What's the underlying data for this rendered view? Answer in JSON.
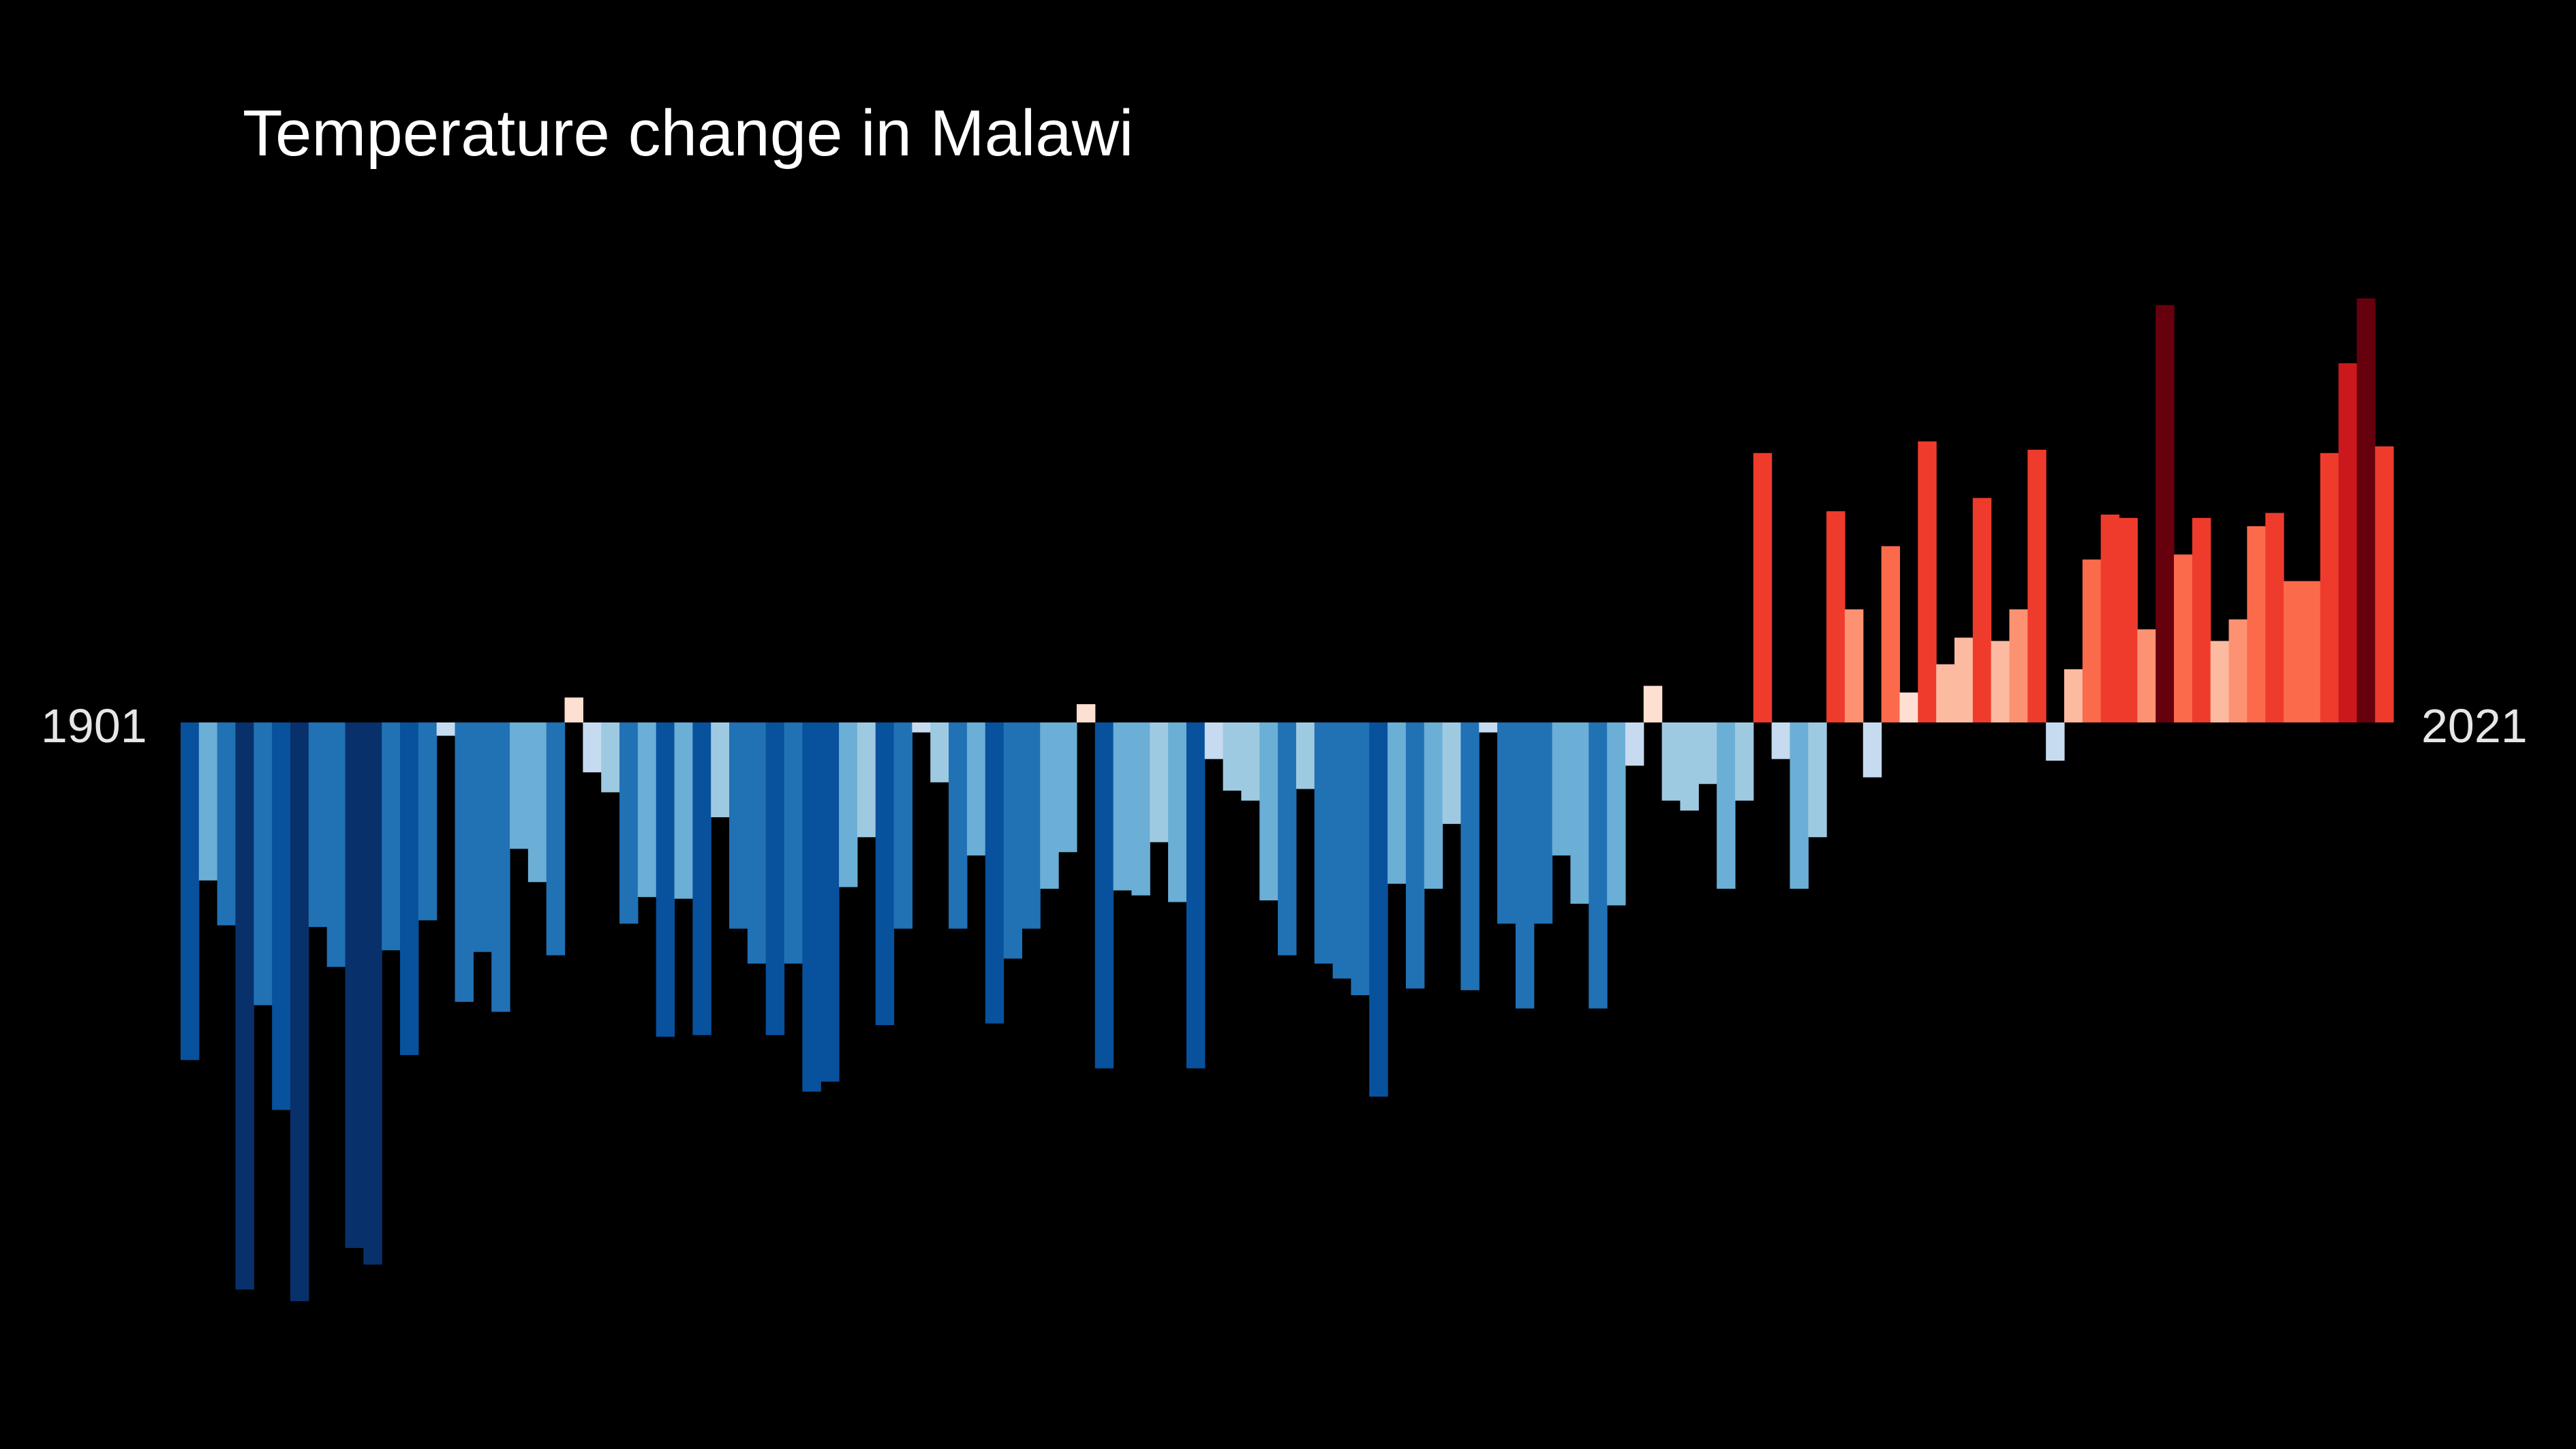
{
  "chart_data": {
    "type": "bar",
    "title": "Temperature change in Malawi",
    "xlabel": "",
    "ylabel": "",
    "x_start_label": "1901",
    "x_end_label": "2021",
    "ylim": [
      -3.5,
      2.6
    ],
    "background_color": "#000000",
    "color_scale": "blue-to-red diverging",
    "categories": [
      1901,
      1902,
      1903,
      1904,
      1905,
      1906,
      1907,
      1908,
      1909,
      1910,
      1911,
      1912,
      1913,
      1914,
      1915,
      1916,
      1917,
      1918,
      1919,
      1920,
      1921,
      1922,
      1923,
      1924,
      1925,
      1926,
      1927,
      1928,
      1929,
      1930,
      1931,
      1932,
      1933,
      1934,
      1935,
      1936,
      1937,
      1938,
      1939,
      1940,
      1941,
      1942,
      1943,
      1944,
      1945,
      1946,
      1947,
      1948,
      1949,
      1950,
      1951,
      1952,
      1953,
      1954,
      1955,
      1956,
      1957,
      1958,
      1959,
      1960,
      1961,
      1962,
      1963,
      1964,
      1965,
      1966,
      1967,
      1968,
      1969,
      1970,
      1971,
      1972,
      1973,
      1974,
      1975,
      1976,
      1977,
      1978,
      1979,
      1980,
      1981,
      1982,
      1983,
      1984,
      1985,
      1986,
      1987,
      1988,
      1989,
      1990,
      1991,
      1992,
      1993,
      1994,
      1995,
      1996,
      1997,
      1998,
      1999,
      2000,
      2001,
      2002,
      2003,
      2004,
      2005,
      2006,
      2007,
      2008,
      2009,
      2010,
      2011,
      2012,
      2013,
      2014,
      2015,
      2016,
      2017,
      2018,
      2019,
      2020,
      2021
    ],
    "values": [
      -2.03,
      -0.95,
      -1.22,
      -3.41,
      -1.7,
      -2.33,
      -3.48,
      -1.23,
      -1.47,
      -3.16,
      -3.26,
      -1.37,
      -2.0,
      -1.19,
      -0.08,
      -1.68,
      -1.38,
      -1.74,
      -0.76,
      -0.96,
      -1.4,
      0.15,
      -0.3,
      -0.42,
      -1.21,
      -1.05,
      -1.89,
      -1.06,
      -1.88,
      -0.57,
      -1.24,
      -1.45,
      -1.88,
      -1.45,
      -2.22,
      -2.16,
      -0.99,
      -0.69,
      -1.82,
      -1.24,
      -0.06,
      -0.36,
      -1.24,
      -0.8,
      -1.81,
      -1.42,
      -1.24,
      -1.0,
      -0.78,
      0.11,
      -2.08,
      -1.01,
      -1.04,
      -0.72,
      -1.08,
      -2.08,
      -0.22,
      -0.41,
      -0.47,
      -1.07,
      -1.4,
      -0.4,
      -1.45,
      -1.54,
      -1.64,
      -2.25,
      -0.97,
      -1.6,
      -1.0,
      -0.61,
      -1.61,
      -0.06,
      -1.21,
      -1.72,
      -1.21,
      -0.8,
      -1.09,
      -1.72,
      -1.1,
      -0.26,
      0.22,
      -0.47,
      -0.53,
      -0.37,
      -1.0,
      -0.47,
      1.62,
      -0.22,
      -1.0,
      -0.69,
      1.27,
      0.68,
      -0.33,
      1.06,
      0.18,
      1.69,
      0.35,
      0.51,
      1.35,
      0.49,
      0.68,
      1.64,
      -0.23,
      0.32,
      0.98,
      1.25,
      1.23,
      0.56,
      2.51,
      1.01,
      1.23,
      0.49,
      0.62,
      1.18,
      1.26,
      0.85,
      0.85,
      1.62,
      2.16,
      2.55,
      1.66
    ],
    "series_colors": {
      "strong_cold": "#08306b",
      "cold": "#08519c",
      "cool": "#2171b5",
      "mild_cool": "#6baed6",
      "light_cool": "#9ecae1",
      "faint_cool": "#c6dbef",
      "faint_warm": "#fee0d2",
      "light_warm": "#fcbba1",
      "mild_warm": "#fc9272",
      "warm": "#fb6a4a",
      "hot": "#ef3b2c",
      "very_hot": "#cb181d",
      "extreme_hot": "#67000d"
    }
  }
}
